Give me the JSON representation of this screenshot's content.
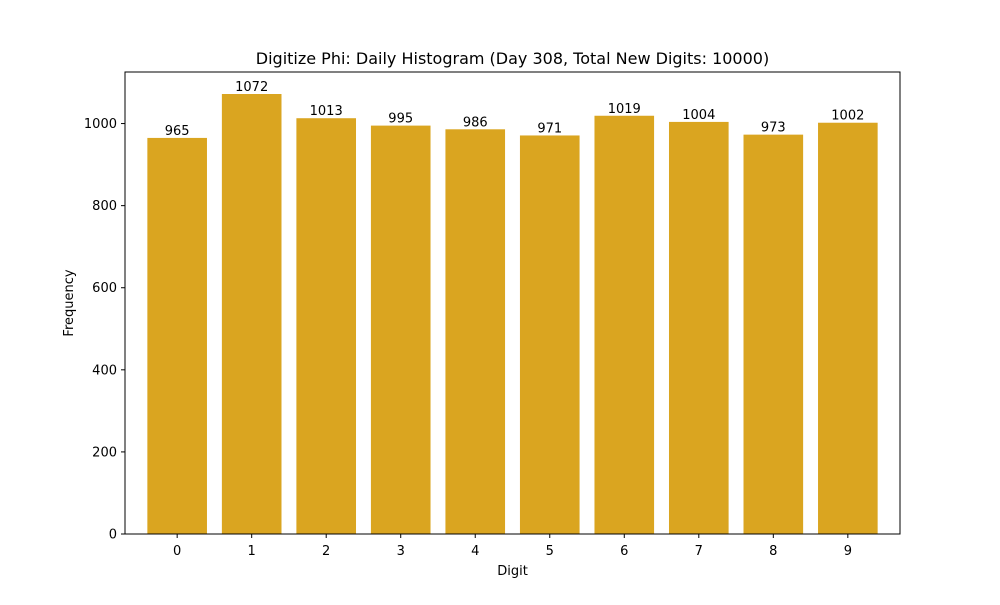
{
  "chart_data": {
    "type": "bar",
    "title": "Digitize Phi: Daily Histogram (Day 308, Total New Digits: 10000)",
    "xlabel": "Digit",
    "ylabel": "Frequency",
    "categories": [
      "0",
      "1",
      "2",
      "3",
      "4",
      "5",
      "6",
      "7",
      "8",
      "9"
    ],
    "values": [
      965,
      1072,
      1013,
      995,
      986,
      971,
      1019,
      1004,
      973,
      1002
    ],
    "data_labels": [
      "965",
      "1072",
      "1013",
      "995",
      "986",
      "971",
      "1019",
      "1004",
      "973",
      "1002"
    ],
    "ylim": [
      0,
      1125.6
    ],
    "yticks": [
      0,
      200,
      400,
      600,
      800,
      1000
    ],
    "ytick_labels": [
      "0",
      "200",
      "400",
      "600",
      "800",
      "1000"
    ],
    "bar_color": "#DAA520",
    "grid": false,
    "legend": "none"
  }
}
